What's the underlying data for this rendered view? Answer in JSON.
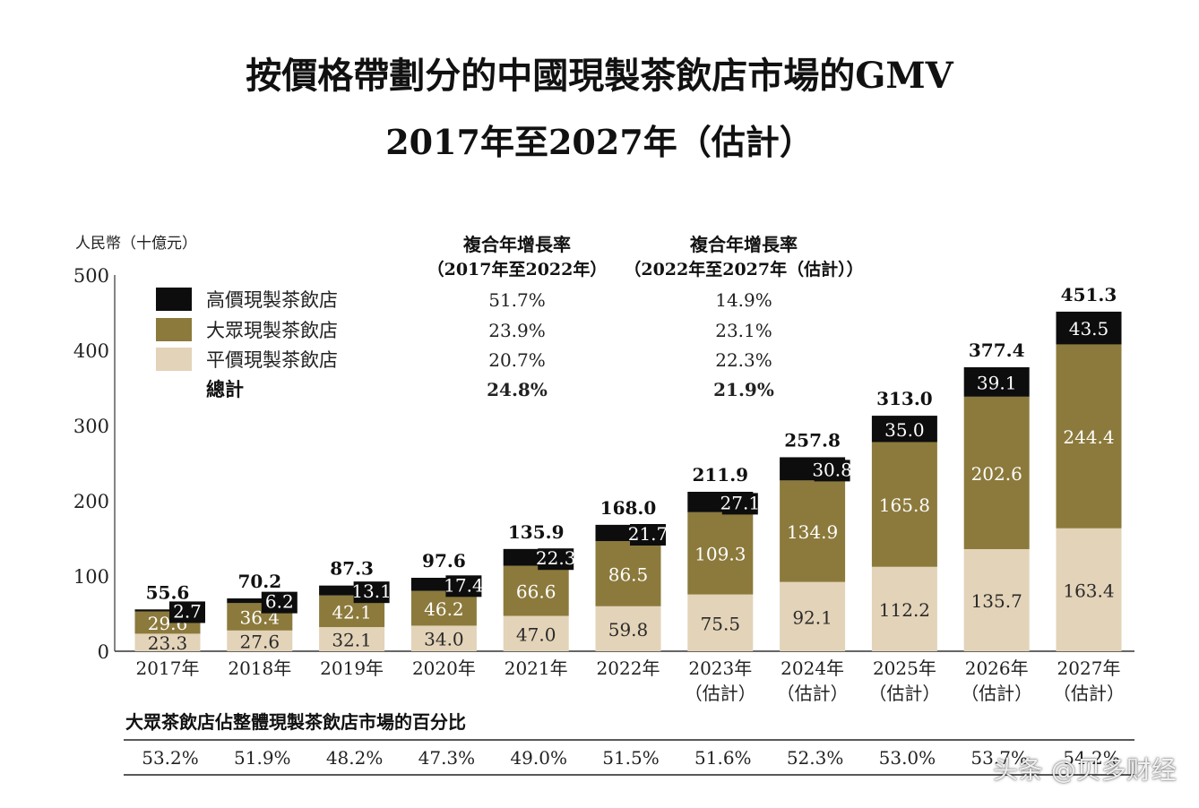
{
  "header": {
    "title_line1": "按價格帶劃分的中國現製茶飲店市場的GMV",
    "title_line2": "2017年至2027年（估計）"
  },
  "chart_data": {
    "type": "bar",
    "stacked": true,
    "ylabel": "人民幣（十億元）",
    "ylim": [
      0,
      500
    ],
    "yticks": [
      0,
      100,
      200,
      300,
      400,
      500
    ],
    "categories": [
      [
        "2017年"
      ],
      [
        "2018年"
      ],
      [
        "2019年"
      ],
      [
        "2020年"
      ],
      [
        "2021年"
      ],
      [
        "2022年"
      ],
      [
        "2023年",
        "（估計）"
      ],
      [
        "2024年",
        "（估計）"
      ],
      [
        "2025年",
        "（估計）"
      ],
      [
        "2026年",
        "（估計）"
      ],
      [
        "2027年",
        "（估計）"
      ]
    ],
    "series": [
      {
        "name": "平價現製茶飲店",
        "color": "#e3d3b8",
        "label_color": "#2a2a2a",
        "values": [
          23.3,
          27.6,
          32.1,
          34.0,
          47.0,
          59.8,
          75.5,
          92.1,
          112.2,
          135.7,
          163.4
        ]
      },
      {
        "name": "大眾現製茶飲店",
        "color": "#8c7a3c",
        "label_color": "#ffffff",
        "values": [
          29.6,
          36.4,
          42.1,
          46.2,
          66.6,
          86.5,
          109.3,
          134.9,
          165.8,
          202.6,
          244.4
        ]
      },
      {
        "name": "高價現製茶飲店",
        "color": "#0d0d0d",
        "label_color": "#ffffff",
        "values": [
          2.7,
          6.2,
          13.1,
          17.4,
          22.3,
          21.7,
          27.1,
          30.8,
          35.0,
          39.1,
          43.5
        ]
      }
    ],
    "totals": [
      55.6,
      70.2,
      87.3,
      97.6,
      135.9,
      168.0,
      211.9,
      257.8,
      313.0,
      377.4,
      451.3
    ],
    "legend": {
      "placement": "top-left",
      "total_label": "總計"
    },
    "cagr": {
      "columns": [
        {
          "heading": [
            "複合年增長率",
            "（2017年至2022年）"
          ],
          "values": [
            "51.7%",
            "23.9%",
            "20.7%",
            "24.8%"
          ]
        },
        {
          "heading": [
            "複合年增長率",
            "（2022年至2027年（估計））"
          ],
          "values": [
            "14.9%",
            "23.1%",
            "22.3%",
            "21.9%"
          ]
        }
      ]
    },
    "share": {
      "title": "大眾茶飲店佔整體現製茶飲店市場的百分比",
      "values": [
        "53.2%",
        "51.9%",
        "48.2%",
        "47.3%",
        "49.0%",
        "51.5%",
        "51.6%",
        "52.3%",
        "53.0%",
        "53.7%",
        "54.2%"
      ]
    }
  },
  "watermark": "头条 @贝多财经"
}
